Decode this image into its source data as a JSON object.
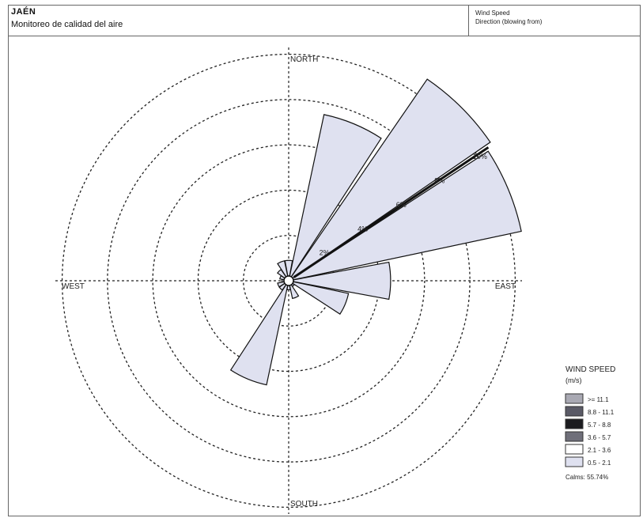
{
  "header": {
    "location": "JAÉN",
    "subtitle": "Monitoreo de calidad del aire",
    "right_line1": "Wind Speed",
    "right_line2": "Direction (blowing from)"
  },
  "directions": {
    "north": "NORTH",
    "east": "EAST",
    "south": "SOUTH",
    "west": "WEST"
  },
  "legend": {
    "title": "WIND SPEED",
    "unit": "(m/s)",
    "items": [
      {
        "label": ">= 11.1",
        "color": "#a9a9b3"
      },
      {
        "label": "8.8 - 11.1",
        "color": "#5a5a66"
      },
      {
        "label": "5.7 - 8.8",
        "color": "#1b1b1f"
      },
      {
        "label": "3.6 - 5.7",
        "color": "#6f6f7a"
      },
      {
        "label": "2.1 - 3.6",
        "color": "#ffffff"
      },
      {
        "label": "0.5 - 2.1",
        "color": "#dfe1f0"
      }
    ],
    "calms": "Calms: 55.74%"
  },
  "chart_data": {
    "type": "windrose",
    "title": "",
    "ring_labels": [
      "2%",
      "4%",
      "6%",
      "8%",
      "10%"
    ],
    "rings": [
      2,
      4,
      6,
      8,
      10
    ],
    "rmax": 10.3,
    "speed_bins": [
      "0.5 - 2.1",
      "2.1 - 3.6",
      "3.6 - 5.7",
      "5.7 - 8.8",
      "8.8 - 11.1",
      ">= 11.1"
    ],
    "sectors": [
      {
        "direction": "N",
        "angle": 0,
        "value": 0.9
      },
      {
        "direction": "NNE",
        "angle": 22.5,
        "value": 7.5
      },
      {
        "direction": "NE",
        "angle": 45,
        "value": 10.8
      },
      {
        "direction": "ENE",
        "angle": 67.5,
        "value": 10.5
      },
      {
        "direction": "E",
        "angle": 90,
        "value": 4.5
      },
      {
        "direction": "ESE",
        "angle": 112.5,
        "value": 2.7
      },
      {
        "direction": "SE",
        "angle": 135,
        "value": 0.3
      },
      {
        "direction": "SSE",
        "angle": 157.5,
        "value": 0.8
      },
      {
        "direction": "S",
        "angle": 180,
        "value": 0.4
      },
      {
        "direction": "SSW",
        "angle": 202.5,
        "value": 4.7
      },
      {
        "direction": "SW",
        "angle": 225,
        "value": 0.5
      },
      {
        "direction": "WSW",
        "angle": 247.5,
        "value": 0.5
      },
      {
        "direction": "W",
        "angle": 270,
        "value": 0.3
      },
      {
        "direction": "WNW",
        "angle": 292.5,
        "value": 0.4
      },
      {
        "direction": "NW",
        "angle": 315,
        "value": 0.6
      },
      {
        "direction": "NNW",
        "angle": 337.5,
        "value": 0.9
      }
    ],
    "sector_color": "#dfe1f0",
    "grid": true
  }
}
